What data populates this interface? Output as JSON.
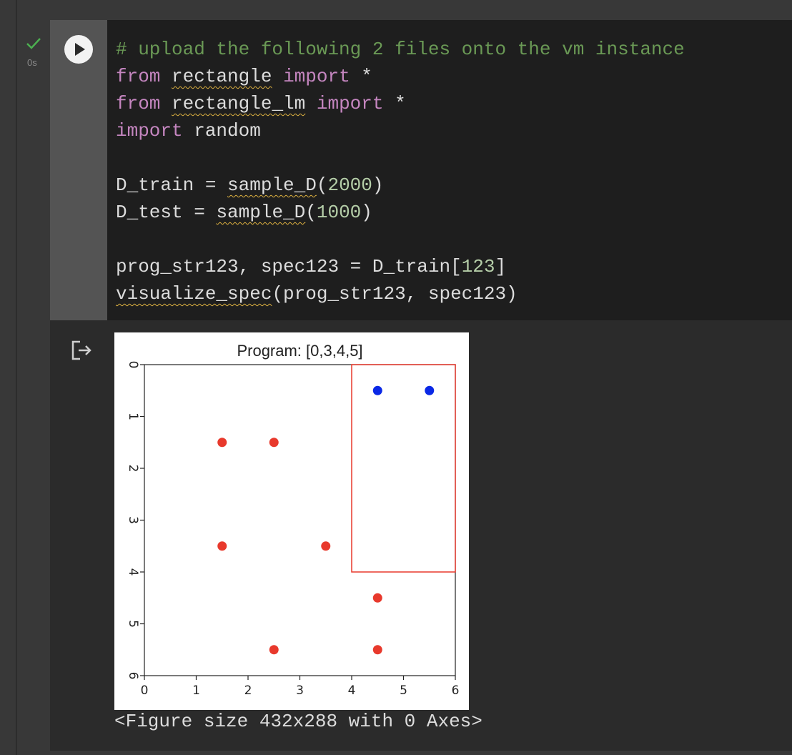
{
  "cell": {
    "exec_time": "0s",
    "status_icon": "check-icon",
    "run_icon": "play-icon",
    "code_lines": [
      [
        {
          "t": "# upload the following 2 files onto the vm instance",
          "c": "comment"
        }
      ],
      [
        {
          "t": "from",
          "c": "kw"
        },
        {
          "t": " "
        },
        {
          "t": "rectangle",
          "c": "squig"
        },
        {
          "t": " "
        },
        {
          "t": "import",
          "c": "kw"
        },
        {
          "t": " *"
        }
      ],
      [
        {
          "t": "from",
          "c": "kw"
        },
        {
          "t": " "
        },
        {
          "t": "rectangle_lm",
          "c": "squig"
        },
        {
          "t": " "
        },
        {
          "t": "import",
          "c": "kw"
        },
        {
          "t": " *"
        }
      ],
      [
        {
          "t": "import",
          "c": "kw"
        },
        {
          "t": " random"
        }
      ],
      [],
      [
        {
          "t": "D_train = "
        },
        {
          "t": "sample_D",
          "c": "squig"
        },
        {
          "t": "("
        },
        {
          "t": "2000",
          "c": "num"
        },
        {
          "t": ")"
        }
      ],
      [
        {
          "t": "D_test = "
        },
        {
          "t": "sample_D",
          "c": "squig"
        },
        {
          "t": "("
        },
        {
          "t": "1000",
          "c": "num"
        },
        {
          "t": ")"
        }
      ],
      [],
      [
        {
          "t": "prog_str123, spec123 = D_train["
        },
        {
          "t": "123",
          "c": "num"
        },
        {
          "t": "]"
        }
      ],
      [
        {
          "t": "visualize_spec",
          "c": "squig"
        },
        {
          "t": "(prog_str123, spec123)"
        }
      ]
    ]
  },
  "output": {
    "output_icon": "output-redirect-icon",
    "figure_text": "<Figure size 432x288 with 0 Axes>"
  },
  "chart_data": {
    "type": "scatter",
    "title": "Program: [0,3,4,5]",
    "xlabel": "",
    "ylabel": "",
    "xlim": [
      0,
      6
    ],
    "ylim": [
      6,
      0
    ],
    "y_inverted": true,
    "xticks": [
      "0",
      "1",
      "2",
      "3",
      "4",
      "5",
      "6"
    ],
    "yticks": [
      "0",
      "1",
      "2",
      "3",
      "4",
      "5",
      "6"
    ],
    "grid": false,
    "series": [
      {
        "color": "#e8392c",
        "points": [
          [
            1.5,
            1.5
          ],
          [
            2.5,
            1.5
          ],
          [
            1.5,
            3.5
          ],
          [
            3.5,
            3.5
          ],
          [
            4.5,
            4.5
          ],
          [
            2.5,
            5.5
          ],
          [
            4.5,
            5.5
          ]
        ]
      },
      {
        "color": "#0a28e6",
        "points": [
          [
            4.5,
            0.5
          ],
          [
            5.5,
            0.5
          ]
        ]
      }
    ],
    "rectangle": {
      "x0": 4,
      "x1": 6,
      "y0": 0,
      "y1": 4,
      "color": "#e8392c"
    }
  }
}
